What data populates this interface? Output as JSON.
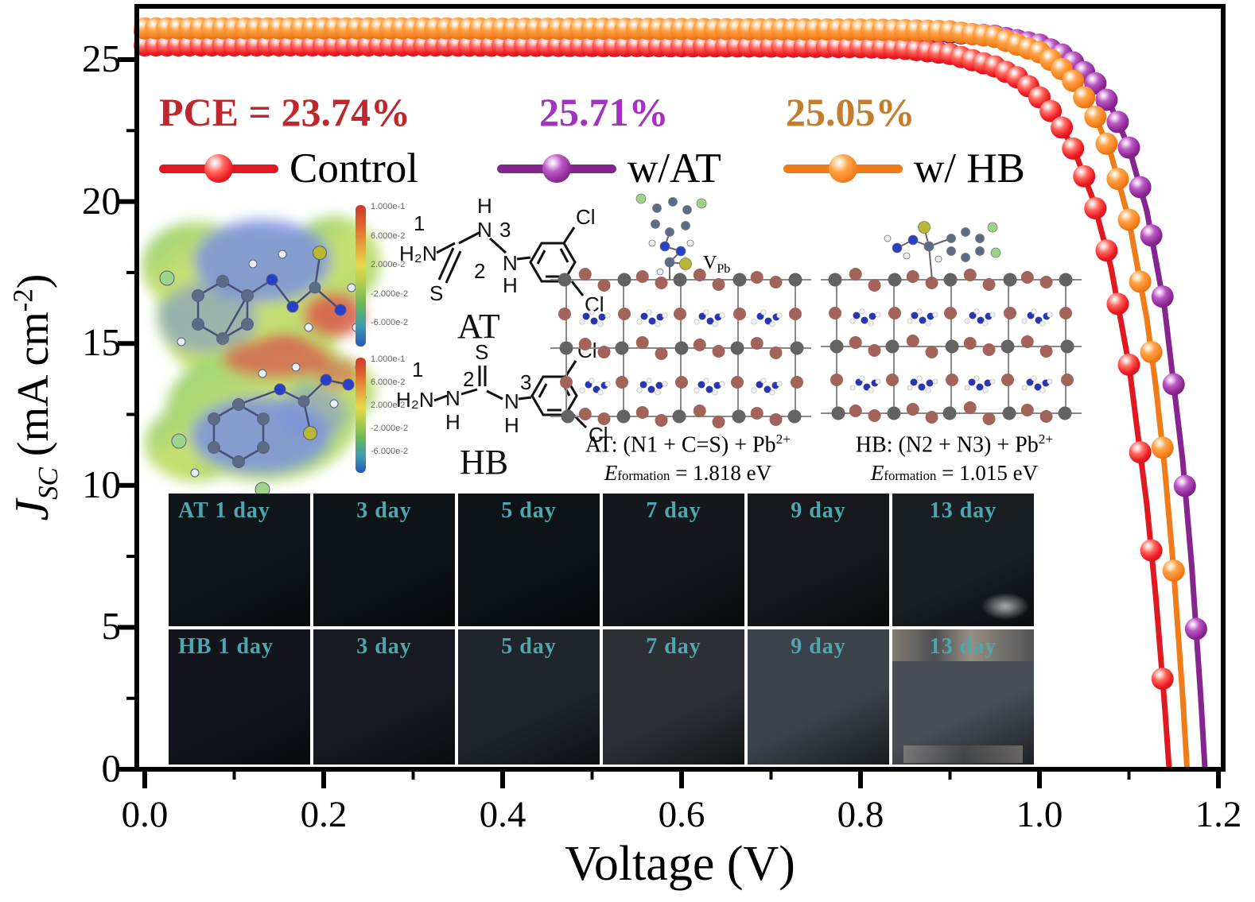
{
  "chart_data": {
    "type": "line",
    "title": "",
    "xlabel": "Voltage (V)",
    "ylabel": "JSC (mA cm^-2)",
    "xlim": [
      0.0,
      1.2
    ],
    "ylim": [
      0,
      26.9
    ],
    "grid": false,
    "legend_position": "top-left-inside",
    "x_tick_labels": [
      "0.0",
      "0.2",
      "0.4",
      "0.6",
      "0.8",
      "1.0",
      "1.2"
    ],
    "y_tick_labels": [
      "0",
      "5",
      "10",
      "15",
      "20",
      "25"
    ],
    "series": [
      {
        "key": "control",
        "name": "Control",
        "pce": "23.74%",
        "jsc_mA_cm2": 25.5,
        "voc_V": 1.145,
        "color": "#e81f27",
        "line_color": "#e0181f",
        "x": [
          0,
          0.1,
          0.2,
          0.3,
          0.4,
          0.5,
          0.6,
          0.7,
          0.8,
          0.85,
          0.9,
          0.95,
          0.98,
          1.0,
          1.02,
          1.04,
          1.06,
          1.08,
          1.1,
          1.12,
          1.13,
          1.14,
          1.145
        ],
        "y": [
          25.5,
          25.5,
          25.5,
          25.5,
          25.49,
          25.48,
          25.47,
          25.46,
          25.44,
          25.38,
          25.2,
          24.76,
          24.3,
          23.67,
          22.9,
          21.72,
          20.06,
          17.68,
          14.25,
          9.32,
          6.1,
          2.22,
          0
        ]
      },
      {
        "key": "at",
        "name": "w/AT",
        "pce": "25.71%",
        "jsc_mA_cm2": 26.0,
        "voc_V": 1.185,
        "color": "#8e2a96",
        "line_color": "#862490",
        "x": [
          0,
          0.1,
          0.2,
          0.3,
          0.4,
          0.5,
          0.6,
          0.7,
          0.8,
          0.85,
          0.9,
          0.95,
          1.0,
          1.03,
          1.06,
          1.08,
          1.1,
          1.12,
          1.14,
          1.16,
          1.17,
          1.18,
          1.185
        ],
        "y": [
          26.0,
          26.0,
          26.0,
          26.0,
          25.99,
          25.99,
          25.98,
          25.98,
          25.97,
          25.96,
          25.95,
          25.84,
          25.53,
          25.11,
          24.28,
          23.35,
          21.9,
          19.67,
          16.22,
          10.9,
          7.22,
          2.67,
          0
        ]
      },
      {
        "key": "hb",
        "name": "w/ HB",
        "pce": "25.05%",
        "jsc_mA_cm2": 26.1,
        "voc_V": 1.165,
        "color": "#f58220",
        "line_color": "#ef7c19",
        "x": [
          0,
          0.1,
          0.2,
          0.3,
          0.4,
          0.5,
          0.6,
          0.7,
          0.8,
          0.85,
          0.9,
          0.95,
          1.0,
          1.02,
          1.04,
          1.06,
          1.08,
          1.1,
          1.12,
          1.13,
          1.14,
          1.15,
          1.16,
          1.165
        ],
        "y": [
          26.1,
          26.1,
          26.1,
          26.1,
          26.09,
          26.09,
          26.08,
          26.07,
          26.06,
          26.04,
          26.0,
          25.8,
          25.26,
          24.83,
          24.17,
          23.17,
          21.66,
          19.36,
          15.87,
          13.52,
          10.6,
          7.0,
          2.58,
          0
        ]
      }
    ]
  },
  "legend": {
    "pce_prefix": "PCE = ",
    "entries": [
      {
        "value": "23.74%",
        "label": "Control",
        "text_color": "#bf272c"
      },
      {
        "value": "25.71%",
        "label": "w/AT",
        "text_color": "#a431c2"
      },
      {
        "value": "25.05%",
        "label": "w/ HB",
        "text_color": "#c67c2b"
      }
    ]
  },
  "ylabel_parts": {
    "j": "J",
    "sub": "SC",
    "unit_pre": " (mA cm",
    "sup": "-2",
    "unit_post": ")"
  },
  "xlabel": "Voltage (V)",
  "colorbar": {
    "ticks": [
      "1.000e-1",
      "6.000e-2",
      "2.000e-2",
      "-2.000e-2",
      "-6.000e-2"
    ]
  },
  "structures": {
    "at": {
      "n1": "1",
      "amine": "H₂N",
      "h_top": "H",
      "n_top": "N",
      "n3": "3",
      "s": "S",
      "n2": "2",
      "n_bot": "N",
      "h_bot": "H",
      "cl_top": "Cl",
      "cl_bot": "Cl",
      "caption": "AT"
    },
    "hb": {
      "n1": "1",
      "amine": "H₂N",
      "n_a": "N",
      "h_a": "H",
      "n2": "2",
      "s": "S",
      "n_b": "N",
      "h_b": "H",
      "n3": "3",
      "cl_top": "Cl",
      "cl_right": "Cl",
      "caption": "HB"
    }
  },
  "slabs": {
    "at": {
      "caption_main": "AT: (N1 + C=S) + Pb",
      "caption_sup": "2+",
      "e_italic": "E",
      "e_sub": "formation",
      "e_value": " = 1.818 eV",
      "site_v": "V",
      "site_sub": "Pb"
    },
    "hb": {
      "caption_main": "HB:  (N2 + N3) + Pb",
      "caption_sup": "2+",
      "e_italic": "E",
      "e_sub": "formation",
      "e_value": " = 1.015 eV"
    }
  },
  "films": {
    "label_color": "#4fa6ad",
    "rows": [
      {
        "name": "AT",
        "cells": [
          {
            "label": "AT  1 day",
            "tone": "#10151a",
            "align": "left",
            "wear": ""
          },
          {
            "label": "3 day",
            "tone": "#0e1318",
            "align": "center",
            "wear": ""
          },
          {
            "label": "5 day",
            "tone": "#0d1217",
            "align": "center",
            "wear": ""
          },
          {
            "label": "7 day",
            "tone": "#14171c",
            "align": "center",
            "wear": ""
          },
          {
            "label": "9 day",
            "tone": "#16181d",
            "align": "center",
            "wear": ""
          },
          {
            "label": "13 day",
            "tone": "#191e23",
            "align": "center",
            "wear": "spot"
          }
        ]
      },
      {
        "name": "HB",
        "cells": [
          {
            "label": "HB 1 day",
            "tone": "#12161c",
            "align": "left",
            "wear": ""
          },
          {
            "label": "3 day",
            "tone": "#171b21",
            "align": "center",
            "wear": ""
          },
          {
            "label": "5 day",
            "tone": "#20252b",
            "align": "center",
            "wear": ""
          },
          {
            "label": "7 day",
            "tone": "#2c2f34",
            "align": "center",
            "wear": ""
          },
          {
            "label": "9 day",
            "tone": "#3b424a",
            "align": "center",
            "wear": ""
          },
          {
            "label": "13 day",
            "tone": "#484d56",
            "align": "center",
            "wear": "heavy"
          }
        ]
      }
    ]
  }
}
